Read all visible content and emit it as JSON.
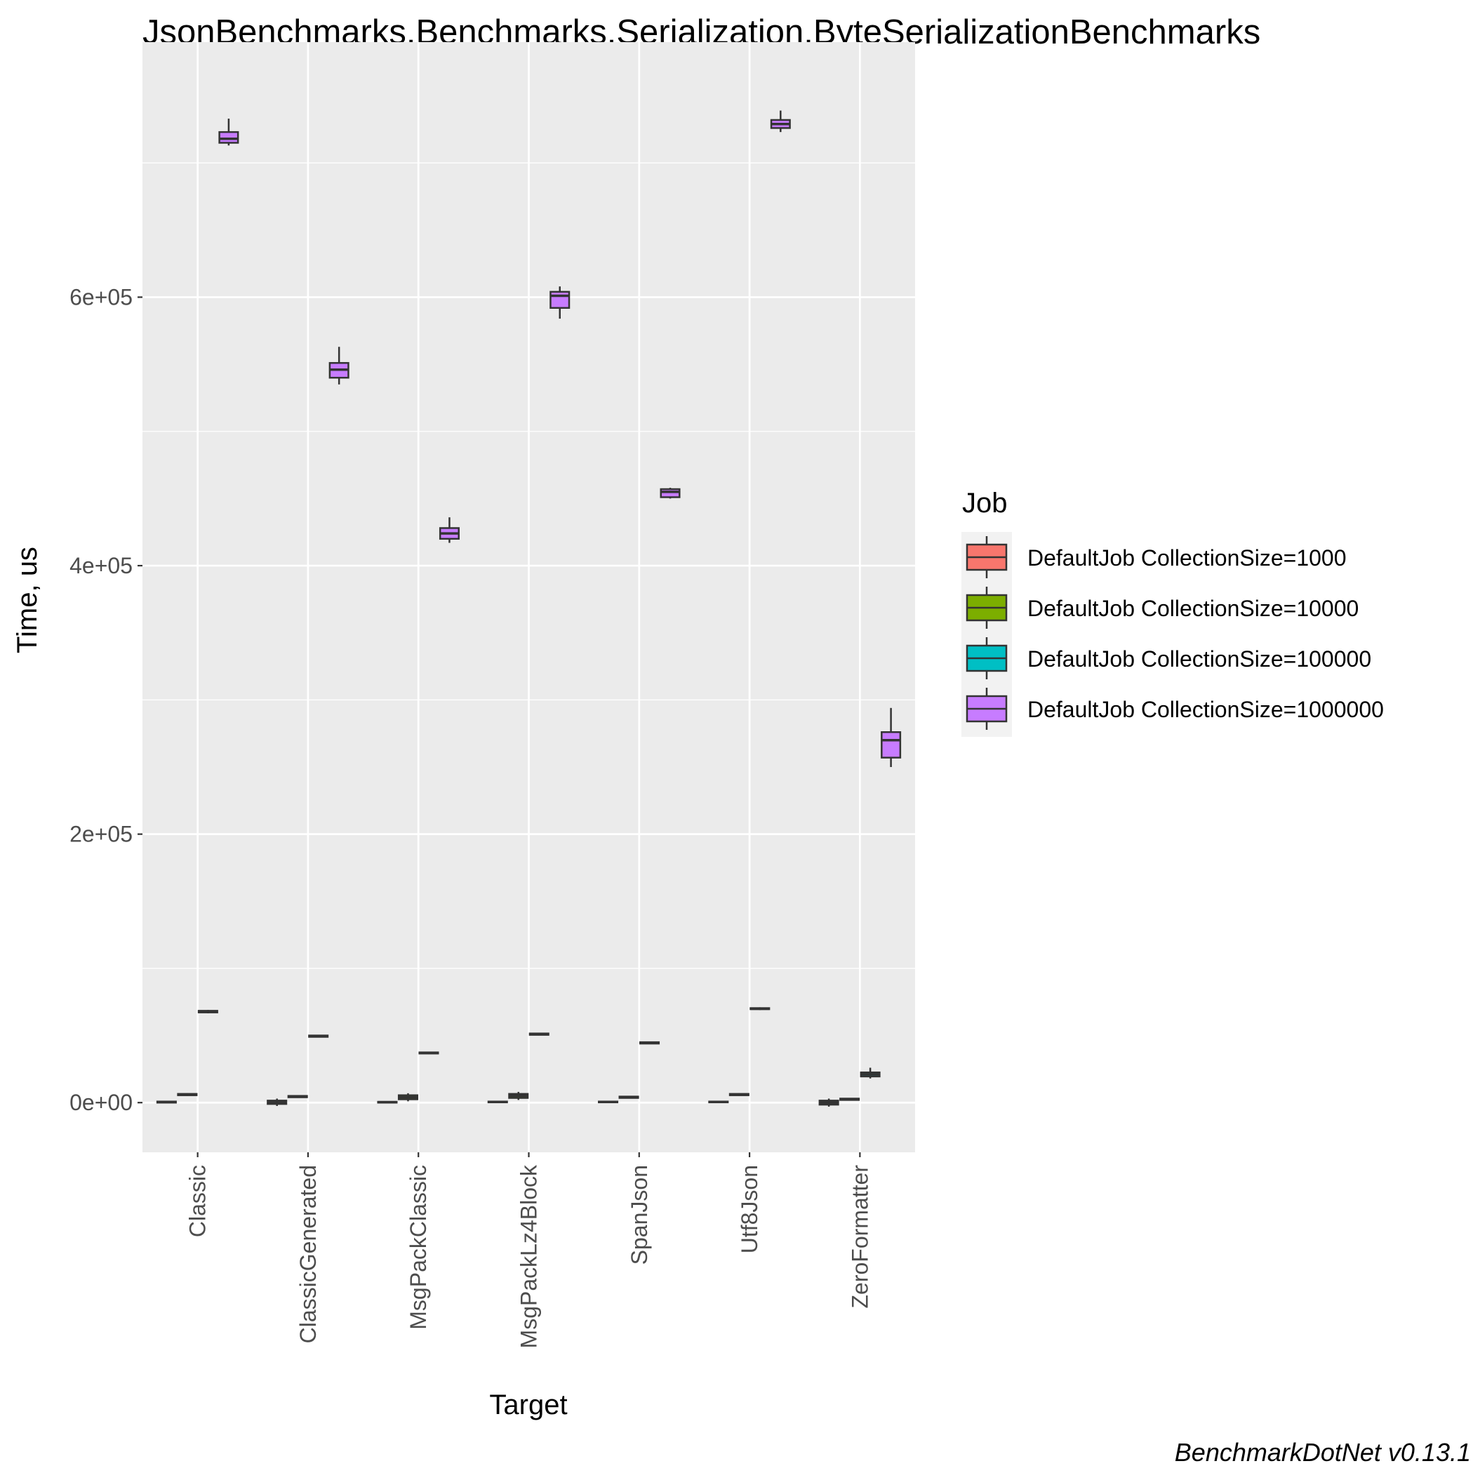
{
  "chart_data": {
    "type": "box",
    "title": "JsonBenchmarks.Benchmarks.Serialization.ByteSerializationBenchmarks",
    "xlabel": "Target",
    "ylabel": "Time, us",
    "caption": "BenchmarkDotNet v0.13.1",
    "legend_title": "Job",
    "legend_position": "right",
    "grid": true,
    "ylim": [
      -37000,
      790000
    ],
    "y_ticks": [
      0,
      200000,
      400000,
      600000
    ],
    "y_tick_labels": [
      "0e+00",
      "2e+05",
      "4e+05",
      "6e+05"
    ],
    "categories": [
      "Classic",
      "ClassicGenerated",
      "MsgPackClassic",
      "MsgPackLz4Block",
      "SpanJson",
      "Utf8Json",
      "ZeroFormatter"
    ],
    "series": [
      {
        "name": "DefaultJob CollectionSize=1000",
        "color": "#F8766D",
        "boxes": [
          {
            "min": 0,
            "q1": 0,
            "median": 500,
            "q3": 800,
            "max": 1200
          },
          {
            "min": -2500,
            "q1": -1000,
            "median": 0,
            "q3": 1500,
            "max": 3000
          },
          {
            "min": -400,
            "q1": 0,
            "median": 300,
            "q3": 600,
            "max": 1000
          },
          {
            "min": 0,
            "q1": 200,
            "median": 500,
            "q3": 800,
            "max": 1200
          },
          {
            "min": 0,
            "q1": 200,
            "median": 500,
            "q3": 800,
            "max": 1200
          },
          {
            "min": 0,
            "q1": 200,
            "median": 500,
            "q3": 800,
            "max": 1200
          },
          {
            "min": -3000,
            "q1": -1500,
            "median": 0,
            "q3": 1500,
            "max": 3000
          }
        ]
      },
      {
        "name": "DefaultJob CollectionSize=10000",
        "color": "#7CAE00",
        "boxes": [
          {
            "min": 5000,
            "q1": 5500,
            "median": 6000,
            "q3": 6500,
            "max": 7000
          },
          {
            "min": 3500,
            "q1": 4000,
            "median": 4500,
            "q3": 5000,
            "max": 5500
          },
          {
            "min": 1000,
            "q1": 2500,
            "median": 4000,
            "q3": 5500,
            "max": 7000
          },
          {
            "min": 2000,
            "q1": 3500,
            "median": 5000,
            "q3": 6500,
            "max": 8000
          },
          {
            "min": 3000,
            "q1": 3500,
            "median": 4000,
            "q3": 4500,
            "max": 5000
          },
          {
            "min": 5000,
            "q1": 5500,
            "median": 6000,
            "q3": 6500,
            "max": 7000
          },
          {
            "min": 1500,
            "q1": 2000,
            "median": 2500,
            "q3": 3000,
            "max": 3500
          }
        ]
      },
      {
        "name": "DefaultJob CollectionSize=100000",
        "color": "#00BFC4",
        "boxes": [
          {
            "min": 66500,
            "q1": 67200,
            "median": 67800,
            "q3": 68400,
            "max": 69000
          },
          {
            "min": 48500,
            "q1": 49000,
            "median": 49500,
            "q3": 50000,
            "max": 50500
          },
          {
            "min": 36000,
            "q1": 36600,
            "median": 37000,
            "q3": 37400,
            "max": 38000
          },
          {
            "min": 50000,
            "q1": 50500,
            "median": 51000,
            "q3": 51500,
            "max": 52000
          },
          {
            "min": 43500,
            "q1": 44000,
            "median": 44500,
            "q3": 45000,
            "max": 45500
          },
          {
            "min": 69000,
            "q1": 69600,
            "median": 70000,
            "q3": 70400,
            "max": 71000
          },
          {
            "min": 18000,
            "q1": 19500,
            "median": 21000,
            "q3": 22500,
            "max": 26000
          }
        ]
      },
      {
        "name": "DefaultJob CollectionSize=1000000",
        "color": "#C77CFF",
        "boxes": [
          {
            "min": 713000,
            "q1": 715000,
            "median": 718000,
            "q3": 723000,
            "max": 733000
          },
          {
            "min": 535000,
            "q1": 540000,
            "median": 546000,
            "q3": 551000,
            "max": 563000
          },
          {
            "min": 417000,
            "q1": 420000,
            "median": 424000,
            "q3": 428000,
            "max": 436000
          },
          {
            "min": 584000,
            "q1": 592000,
            "median": 601000,
            "q3": 604000,
            "max": 608000
          },
          {
            "min": 450000,
            "q1": 451000,
            "median": 455000,
            "q3": 457000,
            "max": 458000
          },
          {
            "min": 723000,
            "q1": 726000,
            "median": 729000,
            "q3": 732000,
            "max": 739000
          },
          {
            "min": 250000,
            "q1": 257000,
            "median": 270000,
            "q3": 276000,
            "max": 294000
          }
        ]
      }
    ]
  }
}
